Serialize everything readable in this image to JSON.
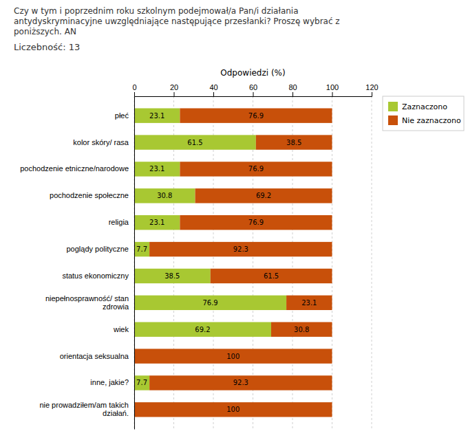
{
  "chart_data": {
    "type": "bar",
    "orientation": "horizontal",
    "stacked": true,
    "data_labels": true,
    "grid": true,
    "legend": "right",
    "title": "Czy w tym i poprzednim roku szkolnym podejmował/a Pan/i działania\nantydyskryminacyjne uwzględniające następujące przesłanki? Proszę wybrać z\nponiższych. AN",
    "subtitle": "Liczebność: 13",
    "xlabel": "Odpowiedzi (%)",
    "categories": [
      "płeć",
      "kolor skóry/ rasa",
      "pochodzenie etniczne/narodowe",
      "pochodzenie społeczne",
      "religia",
      "poglądy polityczne",
      "status ekonomiczny",
      "niepełnosprawność/ stan\nzdrowia",
      "wiek",
      "orientacja seksualna",
      "inne, jakie?",
      "nie prowadziłem/am takich\ndziałań."
    ],
    "series": [
      {
        "name": "Zaznaczono",
        "color": "#a8c832",
        "values": [
          23.1,
          61.5,
          23.1,
          30.8,
          23.1,
          7.7,
          38.5,
          76.9,
          69.2,
          0,
          7.7,
          0
        ]
      },
      {
        "name": "Nie zaznaczono",
        "color": "#c8500a",
        "values": [
          76.9,
          38.5,
          76.9,
          69.2,
          76.9,
          92.3,
          61.5,
          23.1,
          30.8,
          100,
          92.3,
          100
        ]
      }
    ],
    "xlim": [
      0,
      120
    ],
    "xticks": [
      0,
      20,
      40,
      60,
      80,
      100,
      120
    ]
  }
}
